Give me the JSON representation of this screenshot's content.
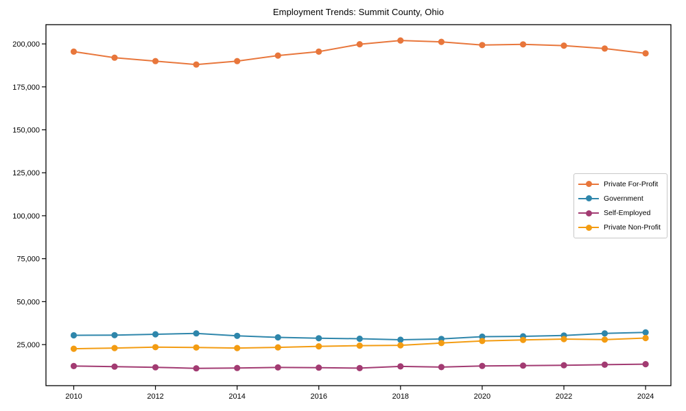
{
  "window": {
    "background": "#ffffff"
  },
  "chart_data": {
    "type": "line",
    "title": "Employment Trends: Summit County, Ohio",
    "xlabel": "",
    "ylabel": "",
    "grid": false,
    "legend_position": "center right",
    "axis_color": "#000000",
    "x": [
      2010,
      2011,
      2012,
      2013,
      2014,
      2015,
      2016,
      2017,
      2018,
      2019,
      2020,
      2021,
      2022,
      2023,
      2024
    ],
    "series": [
      {
        "name": "Private For-Profit",
        "color": "#E8763B",
        "values": [
          195500,
          192000,
          190000,
          188000,
          190000,
          193200,
          195500,
          199800,
          202000,
          201200,
          199300,
          199700,
          199000,
          197300,
          194500
        ]
      },
      {
        "name": "Government",
        "color": "#2E86AB",
        "values": [
          30400,
          30500,
          31000,
          31500,
          30100,
          29200,
          28700,
          28400,
          27800,
          28300,
          29600,
          29800,
          30300,
          31500,
          32100
        ]
      },
      {
        "name": "Self-Employed",
        "color": "#A23B72",
        "values": [
          12500,
          12200,
          11800,
          11200,
          11400,
          11700,
          11600,
          11300,
          12300,
          11900,
          12600,
          12800,
          13000,
          13300,
          13600
        ]
      },
      {
        "name": "Private Non-Profit",
        "color": "#F39C12",
        "values": [
          22600,
          23000,
          23500,
          23300,
          23000,
          23400,
          24000,
          24400,
          24600,
          25900,
          27100,
          27700,
          28200,
          27900,
          28800
        ]
      }
    ],
    "xlim": [
      2009.32,
      2024.62
    ],
    "ylim": [
      1100,
      211200
    ],
    "xticks": {
      "values": [
        2010,
        2012,
        2014,
        2016,
        2018,
        2020,
        2022,
        2024
      ],
      "labels": [
        "2010",
        "2012",
        "2014",
        "2016",
        "2018",
        "2020",
        "2022",
        "2024"
      ]
    },
    "yticks": {
      "values": [
        25000,
        50000,
        75000,
        100000,
        125000,
        150000,
        175000,
        200000
      ],
      "labels": [
        "25,000",
        "50,000",
        "75,000",
        "100,000",
        "125,000",
        "150,000",
        "175,000",
        "200,000"
      ]
    }
  }
}
